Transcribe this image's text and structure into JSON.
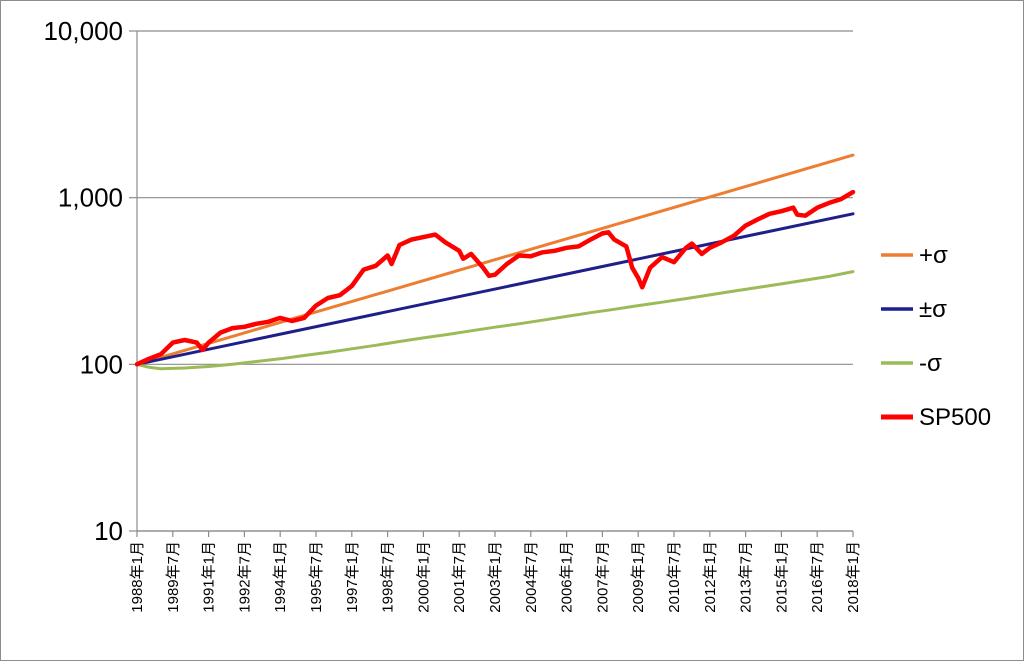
{
  "chart_data": {
    "type": "line",
    "yscale": "log",
    "ylim": [
      10,
      10000
    ],
    "y_ticks": [
      "10",
      "100",
      "1,000",
      "10,000"
    ],
    "y_tick_values": [
      10,
      100,
      1000,
      10000
    ],
    "xlim": [
      "1988-01",
      "2018-01"
    ],
    "x_tick_labels": [
      "1988年1月",
      "1989年7月",
      "1991年1月",
      "1992年7月",
      "1994年1月",
      "1995年7月",
      "1997年1月",
      "1998年7月",
      "2000年1月",
      "2001年7月",
      "2003年1月",
      "2004年7月",
      "2006年1月",
      "2007年7月",
      "2009年1月",
      "2010年7月",
      "2012年1月",
      "2013年7月",
      "2015年1月",
      "2016年7月",
      "2018年1月"
    ],
    "grid": "horizontal major",
    "legend_position": "right",
    "series": [
      {
        "name": "+σ",
        "color": "#ED7D31",
        "points": [
          [
            "1988-01",
            100
          ],
          [
            "2018-01",
            1800
          ]
        ]
      },
      {
        "name": "±σ",
        "color": "#1F1F8C",
        "points": [
          [
            "1988-01",
            100
          ],
          [
            "2018-01",
            800
          ]
        ]
      },
      {
        "name": "-σ",
        "color": "#9BBB59",
        "points": [
          [
            "1988-01",
            100
          ],
          [
            "1988-07",
            96
          ],
          [
            "1989-01",
            94
          ],
          [
            "1990-01",
            95
          ],
          [
            "1991-01",
            97
          ],
          [
            "1992-01",
            100
          ],
          [
            "1993-01",
            104
          ],
          [
            "1994-01",
            108
          ],
          [
            "1995-01",
            113
          ],
          [
            "1996-01",
            118
          ],
          [
            "1997-01",
            124
          ],
          [
            "1998-01",
            130
          ],
          [
            "1999-01",
            137
          ],
          [
            "2000-01",
            144
          ],
          [
            "2001-01",
            151
          ],
          [
            "2002-01",
            159
          ],
          [
            "2003-01",
            167
          ],
          [
            "2004-01",
            175
          ],
          [
            "2005-01",
            184
          ],
          [
            "2006-01",
            194
          ],
          [
            "2007-01",
            204
          ],
          [
            "2008-01",
            214
          ],
          [
            "2009-01",
            225
          ],
          [
            "2010-01",
            236
          ],
          [
            "2011-01",
            248
          ],
          [
            "2012-01",
            261
          ],
          [
            "2013-01",
            275
          ],
          [
            "2014-01",
            289
          ],
          [
            "2015-01",
            304
          ],
          [
            "2016-01",
            320
          ],
          [
            "2017-01",
            337
          ],
          [
            "2018-01",
            360
          ]
        ]
      },
      {
        "name": "SP500",
        "color": "#FF0000",
        "points": [
          [
            "1988-01",
            100
          ],
          [
            "1988-07",
            108
          ],
          [
            "1989-01",
            115
          ],
          [
            "1989-07",
            135
          ],
          [
            "1990-01",
            140
          ],
          [
            "1990-07",
            135
          ],
          [
            "1990-10",
            122
          ],
          [
            "1991-01",
            135
          ],
          [
            "1991-07",
            155
          ],
          [
            "1992-01",
            165
          ],
          [
            "1992-07",
            168
          ],
          [
            "1993-01",
            175
          ],
          [
            "1993-07",
            180
          ],
          [
            "1994-01",
            190
          ],
          [
            "1994-07",
            182
          ],
          [
            "1995-01",
            190
          ],
          [
            "1995-07",
            225
          ],
          [
            "1996-01",
            250
          ],
          [
            "1996-07",
            260
          ],
          [
            "1997-01",
            295
          ],
          [
            "1997-07",
            370
          ],
          [
            "1998-01",
            390
          ],
          [
            "1998-07",
            450
          ],
          [
            "1998-09",
            400
          ],
          [
            "1999-01",
            520
          ],
          [
            "1999-07",
            560
          ],
          [
            "2000-01",
            580
          ],
          [
            "2000-07",
            600
          ],
          [
            "2000-12",
            540
          ],
          [
            "2001-07",
            480
          ],
          [
            "2001-09",
            430
          ],
          [
            "2002-01",
            460
          ],
          [
            "2002-07",
            380
          ],
          [
            "2002-10",
            340
          ],
          [
            "2003-01",
            345
          ],
          [
            "2003-07",
            400
          ],
          [
            "2004-01",
            450
          ],
          [
            "2004-07",
            445
          ],
          [
            "2005-01",
            470
          ],
          [
            "2005-07",
            480
          ],
          [
            "2006-01",
            500
          ],
          [
            "2006-07",
            510
          ],
          [
            "2007-01",
            560
          ],
          [
            "2007-07",
            610
          ],
          [
            "2007-10",
            620
          ],
          [
            "2008-01",
            560
          ],
          [
            "2008-07",
            510
          ],
          [
            "2008-10",
            380
          ],
          [
            "2009-01",
            330
          ],
          [
            "2009-03",
            290
          ],
          [
            "2009-07",
            380
          ],
          [
            "2010-01",
            440
          ],
          [
            "2010-07",
            410
          ],
          [
            "2011-01",
            500
          ],
          [
            "2011-04",
            530
          ],
          [
            "2011-09",
            460
          ],
          [
            "2012-01",
            500
          ],
          [
            "2012-07",
            540
          ],
          [
            "2013-01",
            590
          ],
          [
            "2013-07",
            680
          ],
          [
            "2014-01",
            740
          ],
          [
            "2014-07",
            800
          ],
          [
            "2015-01",
            830
          ],
          [
            "2015-07",
            870
          ],
          [
            "2015-09",
            790
          ],
          [
            "2016-01",
            780
          ],
          [
            "2016-07",
            870
          ],
          [
            "2017-01",
            930
          ],
          [
            "2017-07",
            980
          ],
          [
            "2018-01",
            1080
          ]
        ]
      }
    ]
  }
}
